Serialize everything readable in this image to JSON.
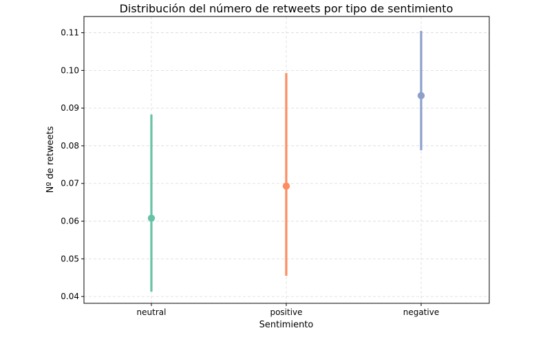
{
  "chart_data": {
    "type": "pointplot",
    "title": "Distribución del número de retweets por tipo de sentimiento",
    "xlabel": "Sentimiento",
    "ylabel": "Nº de retweets",
    "categories": [
      "neutral",
      "positive",
      "negative"
    ],
    "values": [
      0.0608,
      0.0693,
      0.0933
    ],
    "ci_low": [
      0.0413,
      0.0455,
      0.0788
    ],
    "ci_high": [
      0.0883,
      0.0993,
      0.1105
    ],
    "colors": [
      "#66c2a5",
      "#fc8d62",
      "#8da0cb"
    ],
    "ylim": [
      0.0382,
      0.1143
    ],
    "yticks": [
      0.04,
      0.05,
      0.06,
      0.07,
      0.08,
      0.09,
      0.1,
      0.11
    ],
    "ytick_labels": [
      "0.04",
      "0.05",
      "0.06",
      "0.07",
      "0.08",
      "0.09",
      "0.10",
      "0.11"
    ],
    "grid": true
  }
}
